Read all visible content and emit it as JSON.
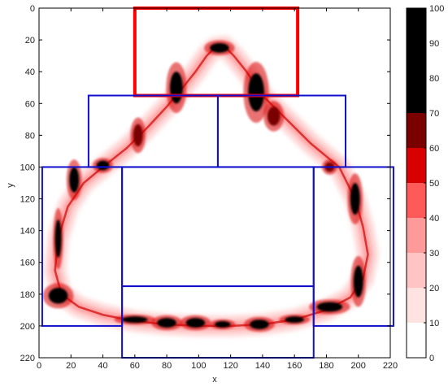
{
  "chart_data": {
    "type": "heatmap",
    "xlabel": "x",
    "ylabel": "y",
    "xlim": [
      0,
      220
    ],
    "ylim": [
      0,
      220
    ],
    "y_axis_inverted": true,
    "x_ticks": [
      0,
      20,
      40,
      60,
      80,
      100,
      120,
      140,
      160,
      180,
      200,
      220
    ],
    "y_ticks": [
      0,
      20,
      40,
      60,
      80,
      100,
      120,
      140,
      160,
      180,
      200,
      220
    ],
    "colorbar": {
      "range": [
        0,
        100
      ],
      "ticks": [
        0,
        10,
        20,
        30,
        40,
        50,
        60,
        70,
        80,
        90,
        100
      ],
      "bins": [
        {
          "from": 0,
          "to": 10,
          "color": "#ffffff"
        },
        {
          "from": 10,
          "to": 20,
          "color": "#ffe2e2"
        },
        {
          "from": 20,
          "to": 30,
          "color": "#ffc4c4"
        },
        {
          "from": 30,
          "to": 40,
          "color": "#ff9a9a"
        },
        {
          "from": 40,
          "to": 50,
          "color": "#ff5a5a"
        },
        {
          "from": 50,
          "to": 60,
          "color": "#d80000"
        },
        {
          "from": 60,
          "to": 70,
          "color": "#7a0000"
        },
        {
          "from": 70,
          "to": 100,
          "color": "#000000"
        }
      ]
    },
    "regions": [
      {
        "x": [
          60,
          162
        ],
        "y": [
          0,
          55
        ],
        "color": "#ff0000"
      },
      {
        "x": [
          31,
          112
        ],
        "y": [
          55,
          100
        ],
        "color": "#1010cc"
      },
      {
        "x": [
          112,
          192
        ],
        "y": [
          55,
          100
        ],
        "color": "#1010cc"
      },
      {
        "x": [
          2,
          52
        ],
        "y": [
          100,
          200
        ],
        "color": "#1010cc"
      },
      {
        "x": [
          172,
          222
        ],
        "y": [
          100,
          200
        ],
        "color": "#1010cc"
      },
      {
        "x": [
          52,
          172
        ],
        "y": [
          100,
          175
        ],
        "color": "#1010cc"
      },
      {
        "x": [
          52,
          172
        ],
        "y": [
          175,
          220
        ],
        "color": "#1010cc"
      }
    ],
    "density_path": [
      [
        110,
        25
      ],
      [
        105,
        30
      ],
      [
        98,
        40
      ],
      [
        90,
        50
      ],
      [
        80,
        62
      ],
      [
        68,
        75
      ],
      [
        55,
        88
      ],
      [
        40,
        100
      ],
      [
        28,
        110
      ],
      [
        18,
        125
      ],
      [
        12,
        145
      ],
      [
        10,
        165
      ],
      [
        14,
        180
      ],
      [
        25,
        188
      ],
      [
        40,
        193
      ],
      [
        60,
        197
      ],
      [
        80,
        199
      ],
      [
        100,
        200
      ],
      [
        120,
        200
      ],
      [
        140,
        199
      ],
      [
        160,
        196
      ],
      [
        180,
        190
      ],
      [
        195,
        182
      ],
      [
        203,
        170
      ],
      [
        206,
        155
      ],
      [
        203,
        138
      ],
      [
        198,
        120
      ],
      [
        188,
        100
      ],
      [
        170,
        85
      ],
      [
        155,
        70
      ],
      [
        140,
        55
      ],
      [
        130,
        40
      ],
      [
        122,
        30
      ],
      [
        116,
        24
      ],
      [
        110,
        25
      ]
    ],
    "hotspots": [
      {
        "x": 86,
        "y": 50,
        "value": 85,
        "rx": 4,
        "ry": 10
      },
      {
        "x": 136,
        "y": 53,
        "value": 90,
        "rx": 5,
        "ry": 12
      },
      {
        "x": 113,
        "y": 25,
        "value": 70,
        "rx": 6,
        "ry": 3
      },
      {
        "x": 147,
        "y": 68,
        "value": 65,
        "rx": 4,
        "ry": 6
      },
      {
        "x": 62,
        "y": 80,
        "value": 60,
        "rx": 3,
        "ry": 7
      },
      {
        "x": 40,
        "y": 99,
        "value": 80,
        "rx": 4,
        "ry": 3
      },
      {
        "x": 22,
        "y": 108,
        "value": 75,
        "rx": 3,
        "ry": 8
      },
      {
        "x": 12,
        "y": 145,
        "value": 80,
        "rx": 2,
        "ry": 12
      },
      {
        "x": 12,
        "y": 181,
        "value": 95,
        "rx": 6,
        "ry": 5
      },
      {
        "x": 60,
        "y": 196,
        "value": 75,
        "rx": 8,
        "ry": 2
      },
      {
        "x": 80,
        "y": 198,
        "value": 90,
        "rx": 6,
        "ry": 3
      },
      {
        "x": 98,
        "y": 198,
        "value": 85,
        "rx": 6,
        "ry": 3
      },
      {
        "x": 115,
        "y": 199,
        "value": 80,
        "rx": 5,
        "ry": 2
      },
      {
        "x": 138,
        "y": 199,
        "value": 95,
        "rx": 6,
        "ry": 3
      },
      {
        "x": 160,
        "y": 196,
        "value": 70,
        "rx": 6,
        "ry": 2
      },
      {
        "x": 182,
        "y": 188,
        "value": 85,
        "rx": 8,
        "ry": 3
      },
      {
        "x": 200,
        "y": 172,
        "value": 90,
        "rx": 3,
        "ry": 10
      },
      {
        "x": 198,
        "y": 120,
        "value": 85,
        "rx": 3,
        "ry": 10
      },
      {
        "x": 182,
        "y": 100,
        "value": 65,
        "rx": 3,
        "ry": 3
      }
    ]
  }
}
